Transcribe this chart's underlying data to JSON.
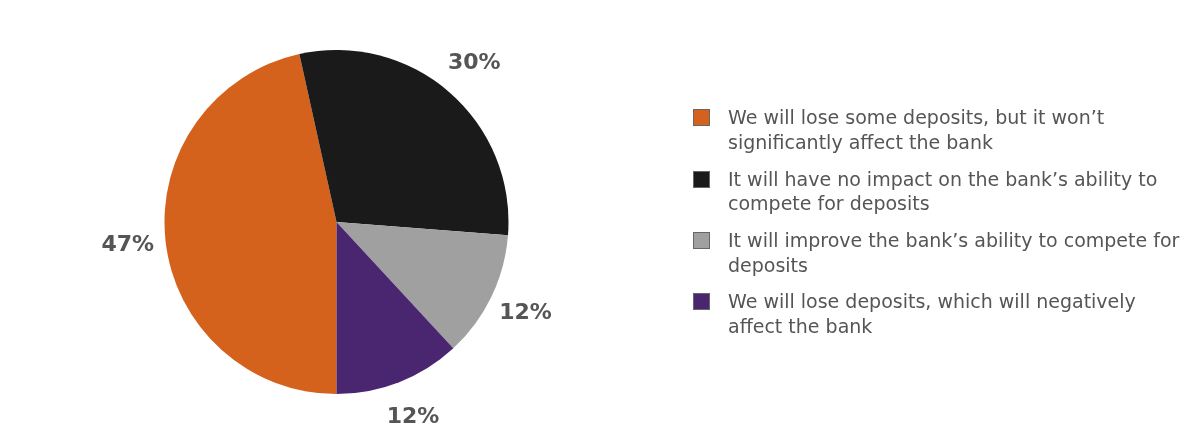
{
  "chart_data": {
    "type": "pie",
    "categories": [
      "We will lose some deposits, but it won’t significantly affect the bank",
      "It will have no impact on the bank’s ability to compete for deposits",
      "It will improve the bank’s ability to compete for deposits",
      "We will lose deposits, which will negatively affect the bank"
    ],
    "values": [
      47,
      30,
      12,
      12
    ],
    "colors": [
      "#d4611c",
      "#1a1a1a",
      "#a0a0a0",
      "#4a2670"
    ],
    "value_labels": [
      "47%",
      "30%",
      "12%",
      "12%"
    ],
    "legend": "right"
  }
}
